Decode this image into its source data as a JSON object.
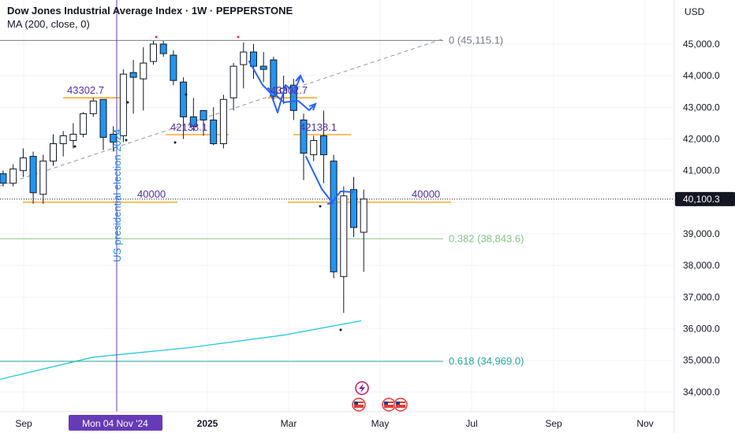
{
  "header": {
    "title": "Dow Jones Industrial Average Index · 1W · PEPPERSTONE",
    "indicator": "MA (200, close, 0)",
    "currency": "USD"
  },
  "colors": {
    "up_body": "#ffffff",
    "down_body": "#2196f3",
    "candle_outline": "#131722",
    "ma_line": "#26c6da",
    "level_line": "#ff9800",
    "fib_0382": "#81c784",
    "fib_0618": "#26a69a",
    "election_line": "#673ab7",
    "arrows": "#2962ff",
    "level_text": "#512da8",
    "price_badge_bg": "#131722"
  },
  "chart_data": {
    "type": "candlestick",
    "y_ticks": [
      "34,000.0",
      "35,000.0",
      "36,000.0",
      "37,000.0",
      "38,000.0",
      "39,000.0",
      "40,000.0",
      "41,000.0",
      "42,000.0",
      "43,000.0",
      "44,000.0",
      "45,000.0"
    ],
    "x_ticks": [
      "Sep",
      "2025",
      "Mar",
      "May",
      "Jul",
      "Sep",
      "Nov"
    ],
    "current_price_label": "40,100.3",
    "event_line_label": "Mon 04 Nov '24",
    "event_text": "US presidential election 2024",
    "levels": [
      {
        "value": 40000,
        "label": "40000"
      },
      {
        "value": 40000,
        "label": "40000"
      },
      {
        "value": 43302.7,
        "label": "43302.7"
      },
      {
        "value": 43302.7,
        "label": "43302.7"
      },
      {
        "value": 42138.1,
        "label": "42138.1"
      },
      {
        "value": 42138.1,
        "label": "42138.1"
      }
    ],
    "fib_levels": [
      {
        "label": "0 (45,115.1)",
        "value": 45115.1
      },
      {
        "label": "0.382 (38,843.6)",
        "value": 38843.6
      },
      {
        "label": "0.618 (34,969.0)",
        "value": 34969.0
      }
    ],
    "candles": [
      {
        "o": 40900,
        "h": 41000,
        "l": 40500,
        "c": 40600
      },
      {
        "o": 40600,
        "h": 41200,
        "l": 40500,
        "c": 41050
      },
      {
        "o": 41000,
        "h": 41700,
        "l": 40800,
        "c": 41400
      },
      {
        "o": 41450,
        "h": 41600,
        "l": 39950,
        "c": 40300
      },
      {
        "o": 40250,
        "h": 41500,
        "l": 39950,
        "c": 41300
      },
      {
        "o": 41300,
        "h": 42150,
        "l": 41150,
        "c": 41850
      },
      {
        "o": 41850,
        "h": 42250,
        "l": 41450,
        "c": 42100
      },
      {
        "o": 41950,
        "h": 42500,
        "l": 41700,
        "c": 42150
      },
      {
        "o": 42150,
        "h": 42850,
        "l": 42050,
        "c": 42800
      },
      {
        "o": 42800,
        "h": 43300,
        "l": 42700,
        "c": 43200
      },
      {
        "o": 43250,
        "h": 43250,
        "l": 41650,
        "c": 42050
      },
      {
        "o": 42150,
        "h": 42400,
        "l": 41600,
        "c": 41900
      },
      {
        "o": 42100,
        "h": 44200,
        "l": 41900,
        "c": 44050
      },
      {
        "o": 44100,
        "h": 44500,
        "l": 42800,
        "c": 43950
      },
      {
        "o": 43900,
        "h": 44900,
        "l": 42900,
        "c": 44400
      },
      {
        "o": 44450,
        "h": 45100,
        "l": 44350,
        "c": 45000
      },
      {
        "o": 45000,
        "h": 45100,
        "l": 44600,
        "c": 44700
      },
      {
        "o": 44650,
        "h": 44800,
        "l": 43700,
        "c": 43850
      },
      {
        "o": 43800,
        "h": 43950,
        "l": 42000,
        "c": 42700
      },
      {
        "o": 42700,
        "h": 43300,
        "l": 42250,
        "c": 42400
      },
      {
        "o": 42900,
        "h": 42900,
        "l": 42100,
        "c": 42600
      },
      {
        "o": 42600,
        "h": 43000,
        "l": 41800,
        "c": 41850
      },
      {
        "o": 41850,
        "h": 43400,
        "l": 41700,
        "c": 43250
      },
      {
        "o": 43300,
        "h": 44400,
        "l": 42900,
        "c": 44300
      },
      {
        "o": 44350,
        "h": 45050,
        "l": 43600,
        "c": 44750
      },
      {
        "o": 44750,
        "h": 45000,
        "l": 43900,
        "c": 44300
      },
      {
        "o": 44300,
        "h": 44750,
        "l": 43800,
        "c": 44200
      },
      {
        "o": 44500,
        "h": 44600,
        "l": 43200,
        "c": 43350
      },
      {
        "o": 43450,
        "h": 44000,
        "l": 43100,
        "c": 43600
      },
      {
        "o": 43700,
        "h": 43900,
        "l": 42600,
        "c": 42900
      },
      {
        "o": 42600,
        "h": 42800,
        "l": 40700,
        "c": 41550
      },
      {
        "o": 41500,
        "h": 42100,
        "l": 41300,
        "c": 41950
      },
      {
        "o": 42100,
        "h": 42900,
        "l": 40600,
        "c": 41500
      },
      {
        "o": 41300,
        "h": 41500,
        "l": 37600,
        "c": 37800
      },
      {
        "o": 37650,
        "h": 40500,
        "l": 36500,
        "c": 40200
      },
      {
        "o": 40400,
        "h": 40800,
        "l": 38900,
        "c": 39200
      },
      {
        "o": 39050,
        "h": 40400,
        "l": 37800,
        "c": 40100
      }
    ],
    "ma_200": [
      {
        "date": "2024-07-29",
        "value": 34400
      },
      {
        "date": "2024-11-04",
        "value": 35100
      },
      {
        "date": "2025-01-06",
        "value": 35400
      },
      {
        "date": "2025-03-03",
        "value": 35800
      },
      {
        "date": "2025-04-28",
        "value": 36250
      }
    ]
  }
}
